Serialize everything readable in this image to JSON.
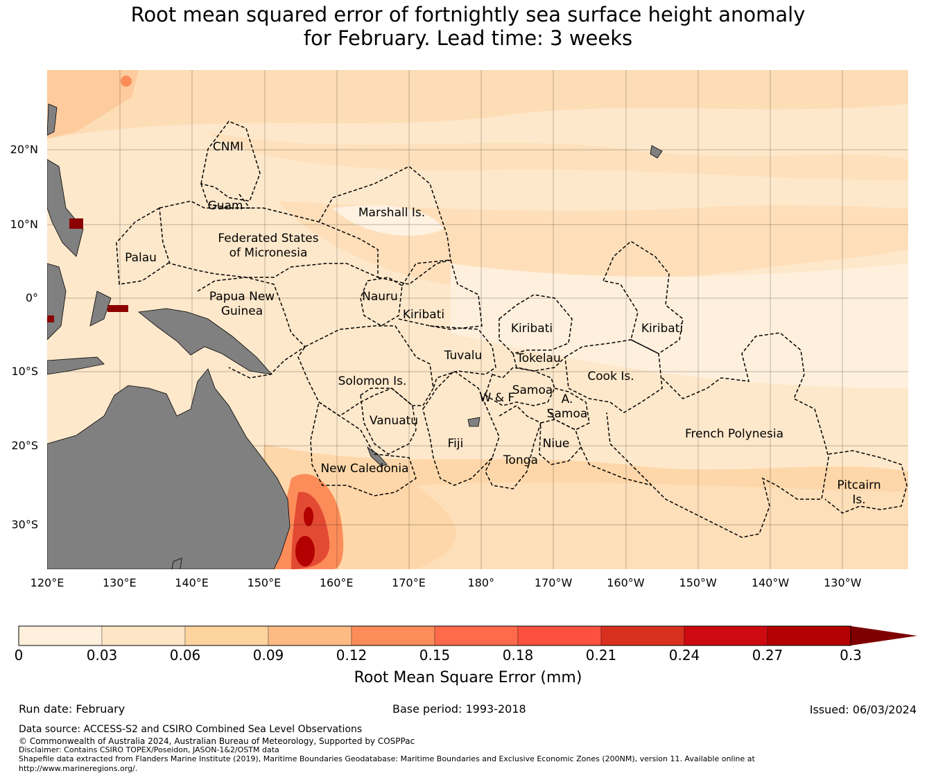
{
  "title": {
    "line1": "Root mean squared error of fortnightly sea surface height anomaly",
    "line2": "for February. Lead time: 3 weeks"
  },
  "map": {
    "lat_ticks": [
      "20°N",
      "10°N",
      "0°",
      "10°S",
      "20°S",
      "30°S"
    ],
    "lon_ticks": [
      "120°E",
      "130°E",
      "140°E",
      "150°E",
      "160°E",
      "170°E",
      "180°",
      "170°W",
      "160°W",
      "150°W",
      "140°W",
      "130°W"
    ],
    "regions": {
      "cnmi": "CNMI",
      "guam": "Guam",
      "marshall": "Marshall Is.",
      "fsm1": "Federated States",
      "fsm2": "of Micronesia",
      "palau": "Palau",
      "png1": "Papua New",
      "png2": "Guinea",
      "nauru": "Nauru",
      "kiribati_w": "Kiribati",
      "kiribati_c": "Kiribati",
      "kiribati_e": "Kiribati",
      "tuvalu": "Tuvalu",
      "tokelau": "Tokelau",
      "solomon": "Solomon Is.",
      "wf": "W & F",
      "samoa": "Samoa",
      "asamoa1": "A.",
      "asamoa2": "Samoa",
      "cook": "Cook Is.",
      "vanuatu": "Vanuatu",
      "fiji": "Fiji",
      "niue": "Niue",
      "tonga": "Tonga",
      "french_polynesia": "French Polynesia",
      "new_caledonia": "New Caledonia",
      "pitcairn1": "Pitcairn",
      "pitcairn2": "Is."
    }
  },
  "colorbar": {
    "label": "Root Mean Square Error (mm)",
    "ticks": [
      "0",
      "0.03",
      "0.06",
      "0.09",
      "0.12",
      "0.15",
      "0.18",
      "0.21",
      "0.24",
      "0.27",
      "0.3"
    ],
    "colors": [
      "#fff0dd",
      "#fee5c6",
      "#fdd49e",
      "#fdbb84",
      "#fc8d59",
      "#fe6a4a",
      "#fc5140",
      "#d8301f",
      "#cc0a10",
      "#b30000"
    ],
    "over_color": "#7f0000",
    "extend": "max"
  },
  "footer": {
    "run_date": "Run date: February",
    "base_period": "Base period: 1993-2018",
    "issued": "Issued: 06/03/2024",
    "data_source": "Data source: ACCESS-S2 and CSIRO Combined Sea Level Observations",
    "copyright": "© Commonwealth of Australia 2024, Australian Bureau of Meteorology, Supported by COSPPac",
    "disclaimer": "Disclaimer: Contains CSIRO TOPEX/Poseidon, JASON-1&2/OSTM data",
    "shapefile1": "Shapefile data extracted from Flanders Marine Institute (2019), Maritime Boundaries Geodatabase: Maritime Boundaries and Exclusive Economic Zones (200NM), version 11. Available online at",
    "shapefile2": "http://www.marineregions.org/."
  }
}
